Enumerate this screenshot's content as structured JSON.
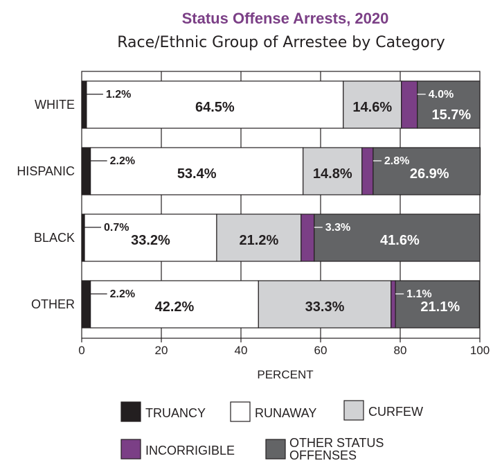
{
  "chart_data": {
    "type": "bar",
    "orientation": "horizontal",
    "stacked": true,
    "title": "Status Offense Arrests, 2020",
    "subtitle": "Race/Ethnic Group of Arrestee by Category",
    "xlabel": "PERCENT",
    "xlim": [
      0,
      100
    ],
    "xticks": [
      0,
      20,
      40,
      60,
      80,
      100
    ],
    "categories": [
      "WHITE",
      "HISPANIC",
      "BLACK",
      "OTHER"
    ],
    "series": [
      {
        "name": "TRUANCY",
        "color": "#231f20",
        "values": [
          1.2,
          2.2,
          0.7,
          2.2
        ],
        "labels": [
          "1.2%",
          "2.2%",
          "0.7%",
          "2.2%"
        ]
      },
      {
        "name": "RUNAWAY",
        "color": "#ffffff",
        "values": [
          64.5,
          53.4,
          33.2,
          42.2
        ],
        "labels": [
          "64.5%",
          "53.4%",
          "33.2%",
          "42.2%"
        ]
      },
      {
        "name": "CURFEW",
        "color": "#d1d2d4",
        "values": [
          14.6,
          14.8,
          21.2,
          33.3
        ],
        "labels": [
          "14.6%",
          "14.8%",
          "21.2%",
          "33.3%"
        ]
      },
      {
        "name": "INCORRIGIBLE",
        "color": "#7b3f86",
        "values": [
          4.0,
          2.8,
          3.3,
          1.1
        ],
        "labels": [
          "4.0%",
          "2.8%",
          "3.3%",
          "1.1%"
        ]
      },
      {
        "name": "OTHER STATUS OFFENSES",
        "color": "#636466",
        "values": [
          15.7,
          26.9,
          41.6,
          21.1
        ],
        "labels": [
          "15.7%",
          "26.9%",
          "41.6%",
          "21.1%"
        ]
      }
    ],
    "grid": true,
    "legend_position": "bottom"
  },
  "legend": {
    "row1": [
      "TRUANCY",
      "RUNAWAY",
      "CURFEW"
    ],
    "row2": [
      "INCORRIGIBLE",
      "OTHER STATUS",
      "OFFENSES"
    ]
  }
}
